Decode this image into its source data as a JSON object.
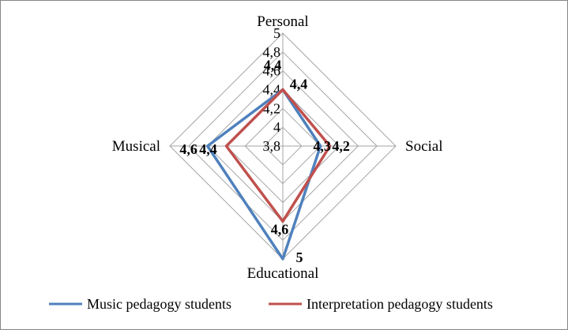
{
  "chart_data": {
    "type": "radar",
    "axes": [
      "Personal",
      "Social",
      "Educational",
      "Musical"
    ],
    "r_ticks": [
      "3,8",
      "4",
      "4,2",
      "4,4",
      "4,6",
      "4,8",
      "5"
    ],
    "r_range": [
      3.8,
      5.0
    ],
    "grid": true,
    "legend_position": "bottom",
    "series": [
      {
        "name": "Music pedagogy students",
        "color": "#4f81bd",
        "values": [
          4.4,
          4.2,
          5.0,
          4.6
        ],
        "labels": [
          "4,4",
          "4,2",
          "5",
          "4,6"
        ]
      },
      {
        "name": "Interpretation pedagogy students",
        "color": "#c0504d",
        "values": [
          4.4,
          4.3,
          4.6,
          4.4
        ],
        "labels": [
          "4,4",
          "4,3",
          "4,6",
          "4,4"
        ]
      }
    ]
  }
}
